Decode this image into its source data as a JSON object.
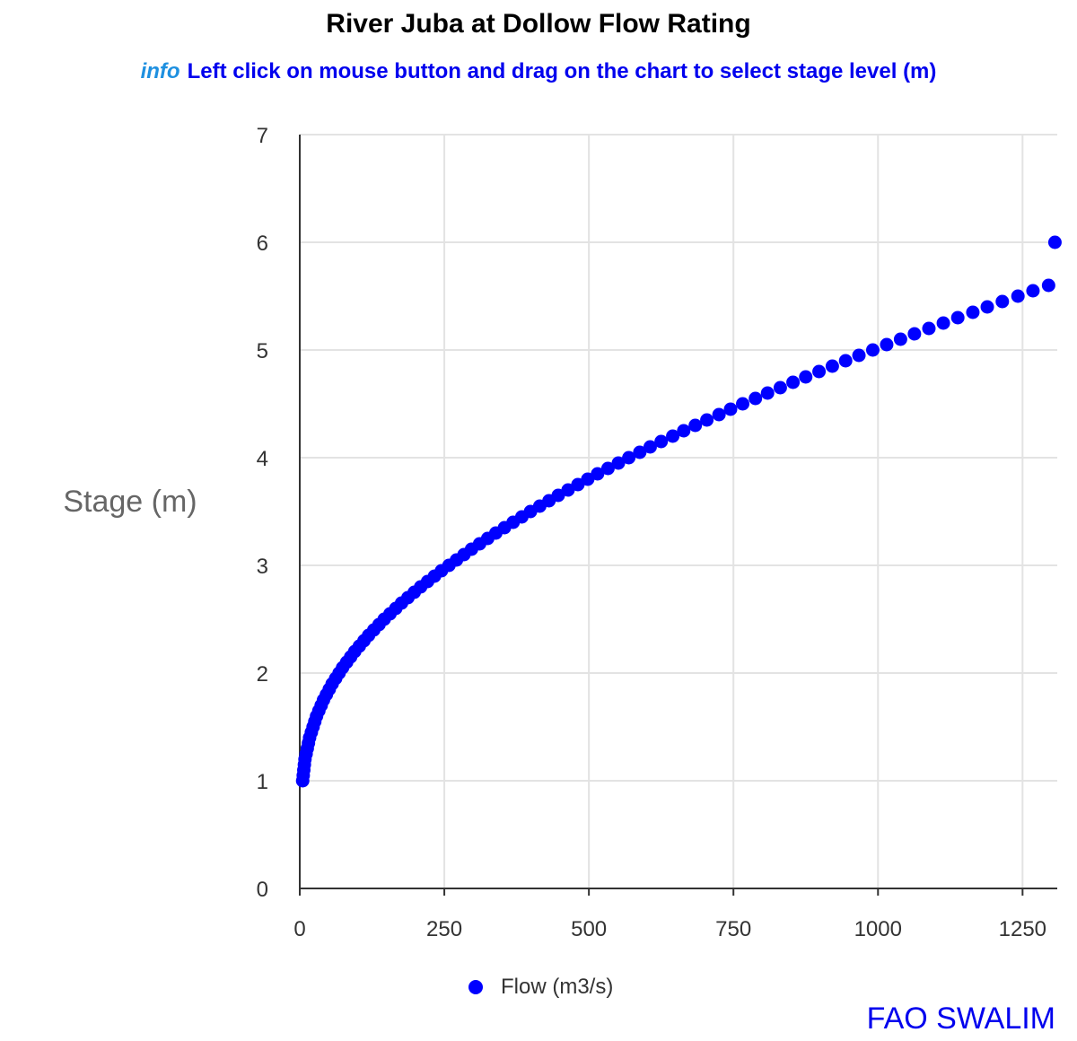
{
  "colors": {
    "series": "#0000ff",
    "info": "#1e90e0",
    "subtitle": "#0000ee",
    "credit": "#0000ee"
  },
  "header": {
    "title": "River Juba at Dollow Flow Rating",
    "info_label": "info",
    "instruction": "Left click on mouse button and drag on the chart to select stage level (m)"
  },
  "footer": {
    "credit": "FAO SWALIM"
  },
  "chart_data": {
    "type": "scatter",
    "title": "River Juba at Dollow Flow Rating",
    "xlabel": "",
    "ylabel": "Stage (m)",
    "xlim": [
      0,
      1310
    ],
    "ylim": [
      0,
      7
    ],
    "xticks": [
      0,
      250,
      500,
      750,
      1000,
      1250
    ],
    "yticks": [
      0,
      1,
      2,
      3,
      4,
      5,
      6,
      7
    ],
    "grid": true,
    "legend_position": "bottom",
    "series": [
      {
        "name": "Flow (m3/s)",
        "color": "#0000ff",
        "points": [
          [
            5,
            1.0
          ],
          [
            6,
            1.05
          ],
          [
            7,
            1.1
          ],
          [
            8,
            1.15
          ],
          [
            9,
            1.2
          ],
          [
            11,
            1.25
          ],
          [
            13,
            1.3
          ],
          [
            15,
            1.35
          ],
          [
            17,
            1.4
          ],
          [
            20,
            1.45
          ],
          [
            23,
            1.5
          ],
          [
            26,
            1.55
          ],
          [
            29,
            1.6
          ],
          [
            33,
            1.65
          ],
          [
            37,
            1.7
          ],
          [
            41,
            1.75
          ],
          [
            46,
            1.8
          ],
          [
            51,
            1.85
          ],
          [
            56,
            1.9
          ],
          [
            62,
            1.95
          ],
          [
            68,
            2.0
          ],
          [
            74,
            2.05
          ],
          [
            81,
            2.1
          ],
          [
            88,
            2.15
          ],
          [
            95,
            2.2
          ],
          [
            103,
            2.25
          ],
          [
            111,
            2.3
          ],
          [
            119,
            2.35
          ],
          [
            128,
            2.4
          ],
          [
            137,
            2.45
          ],
          [
            146,
            2.5
          ],
          [
            156,
            2.55
          ],
          [
            166,
            2.6
          ],
          [
            176,
            2.65
          ],
          [
            187,
            2.7
          ],
          [
            198,
            2.75
          ],
          [
            209,
            2.8
          ],
          [
            221,
            2.85
          ],
          [
            233,
            2.9
          ],
          [
            245,
            2.95
          ],
          [
            258,
            3.0
          ],
          [
            271,
            3.05
          ],
          [
            284,
            3.1
          ],
          [
            297,
            3.15
          ],
          [
            311,
            3.2
          ],
          [
            325,
            3.25
          ],
          [
            339,
            3.3
          ],
          [
            354,
            3.35
          ],
          [
            369,
            3.4
          ],
          [
            384,
            3.45
          ],
          [
            399,
            3.5
          ],
          [
            415,
            3.55
          ],
          [
            431,
            3.6
          ],
          [
            447,
            3.65
          ],
          [
            464,
            3.7
          ],
          [
            481,
            3.75
          ],
          [
            498,
            3.8
          ],
          [
            515,
            3.85
          ],
          [
            533,
            3.9
          ],
          [
            551,
            3.95
          ],
          [
            569,
            4.0
          ],
          [
            588,
            4.05
          ],
          [
            606,
            4.1
          ],
          [
            625,
            4.15
          ],
          [
            645,
            4.2
          ],
          [
            664,
            4.25
          ],
          [
            684,
            4.3
          ],
          [
            704,
            4.35
          ],
          [
            725,
            4.4
          ],
          [
            745,
            4.45
          ],
          [
            766,
            4.5
          ],
          [
            788,
            4.55
          ],
          [
            809,
            4.6
          ],
          [
            831,
            4.65
          ],
          [
            853,
            4.7
          ],
          [
            875,
            4.75
          ],
          [
            898,
            4.8
          ],
          [
            921,
            4.85
          ],
          [
            944,
            4.9
          ],
          [
            967,
            4.95
          ],
          [
            991,
            5.0
          ],
          [
            1015,
            5.05
          ],
          [
            1039,
            5.1
          ],
          [
            1063,
            5.15
          ],
          [
            1088,
            5.2
          ],
          [
            1113,
            5.25
          ],
          [
            1138,
            5.3
          ],
          [
            1164,
            5.35
          ],
          [
            1189,
            5.4
          ],
          [
            1215,
            5.45
          ],
          [
            1242,
            5.5
          ],
          [
            1268,
            5.55
          ],
          [
            1295,
            5.6
          ],
          [
            1306,
            6.0
          ]
        ]
      }
    ]
  }
}
